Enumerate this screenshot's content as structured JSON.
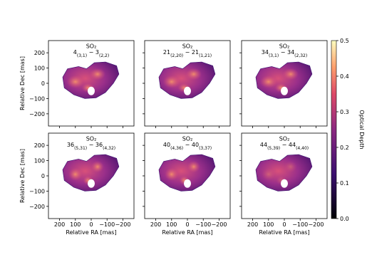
{
  "chart_data": {
    "type": "image-grid",
    "xlabel": "Relative RA [mas]",
    "ylabel": "Relative Dec [mas]",
    "xlim": [
      270,
      -270
    ],
    "ylim": [
      -280,
      280
    ],
    "xticks": [
      200,
      100,
      0,
      {
        "value": -100,
        "label": "−100"
      },
      {
        "value": -200,
        "label": "−200"
      }
    ],
    "yticks": [
      {
        "value": -200,
        "label": "−200"
      },
      {
        "value": -100,
        "label": "−100"
      },
      0,
      100,
      200
    ],
    "panels": [
      {
        "species": "SO₂",
        "transition": [
          {
            "text": "4"
          },
          {
            "text": "(3,1)",
            "sub": true
          },
          {
            "text": " − 3"
          },
          {
            "text": "(2,2)",
            "sub": true
          }
        ]
      },
      {
        "species": "SO₂",
        "transition": [
          {
            "text": "21"
          },
          {
            "text": "(2,20)",
            "sub": true
          },
          {
            "text": " − 21"
          },
          {
            "text": "(1,21)",
            "sub": true
          }
        ]
      },
      {
        "species": "SO₂",
        "transition": [
          {
            "text": "34"
          },
          {
            "text": "(3,1)",
            "sub": true
          },
          {
            "text": " − 34"
          },
          {
            "text": "(2,32)",
            "sub": true
          }
        ]
      },
      {
        "species": "SO₂",
        "transition": [
          {
            "text": "36"
          },
          {
            "text": "(5,31)",
            "sub": true
          },
          {
            "text": " − 36"
          },
          {
            "text": "(4,32)",
            "sub": true
          }
        ]
      },
      {
        "species": "SO₂",
        "transition": [
          {
            "text": "40"
          },
          {
            "text": "(4,36)",
            "sub": true
          },
          {
            "text": " − 40"
          },
          {
            "text": "(3,37)",
            "sub": true
          }
        ]
      },
      {
        "species": "SO₂",
        "transition": [
          {
            "text": "44"
          },
          {
            "text": "(5,39)",
            "sub": true
          },
          {
            "text": " − 44"
          },
          {
            "text": "(4,40)",
            "sub": true
          }
        ]
      }
    ],
    "colorbar": {
      "label": "Optical Depth",
      "lim": [
        0,
        0.5
      ],
      "ticks": [
        {
          "value": 0,
          "label": "0.0"
        },
        0.1,
        0.2,
        0.3,
        0.4,
        0.5
      ]
    }
  }
}
